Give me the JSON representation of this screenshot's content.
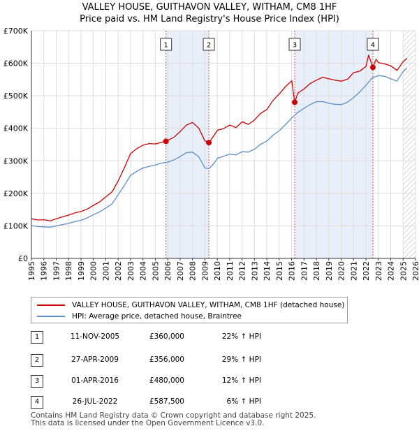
{
  "chart_data": {
    "type": "line",
    "title": "VALLEY HOUSE, GUITHAVON VALLEY, WITHAM, CM8 1HF",
    "subtitle": "Price paid vs. HM Land Registry's House Price Index (HPI)",
    "xlabel": "",
    "ylabel": "",
    "xlim": [
      1995,
      2026
    ],
    "ylim": [
      0,
      700000
    ],
    "x_ticks": [
      1995,
      1996,
      1997,
      1998,
      1999,
      2000,
      2001,
      2002,
      2003,
      2004,
      2005,
      2006,
      2007,
      2008,
      2009,
      2010,
      2011,
      2012,
      2013,
      2014,
      2015,
      2016,
      2017,
      2018,
      2019,
      2020,
      2021,
      2022,
      2023,
      2024,
      2025,
      2026
    ],
    "y_ticks": [
      {
        "value": 0,
        "label": "£0"
      },
      {
        "value": 100000,
        "label": "£100K"
      },
      {
        "value": 200000,
        "label": "£200K"
      },
      {
        "value": 300000,
        "label": "£300K"
      },
      {
        "value": 400000,
        "label": "£400K"
      },
      {
        "value": 500000,
        "label": "£500K"
      },
      {
        "value": 600000,
        "label": "£600K"
      },
      {
        "value": 700000,
        "label": "£700K"
      }
    ],
    "grid": true,
    "future_hatch_from": 2025.0,
    "series": [
      {
        "name": "VALLEY HOUSE, GUITHAVON VALLEY, WITHAM, CM8 1HF (detached house)",
        "color": "#cc0000",
        "x": [
          1995,
          1995.5,
          1996,
          1996.5,
          1997,
          1997.5,
          1998,
          1998.5,
          1999,
          1999.5,
          2000,
          2000.5,
          2001,
          2001.5,
          2002,
          2002.5,
          2003,
          2003.5,
          2004,
          2004.5,
          2005,
          2005.5,
          2005.86,
          2006.5,
          2007,
          2007.5,
          2008,
          2008.5,
          2009,
          2009.32,
          2009.7,
          2010,
          2010.5,
          2011,
          2011.5,
          2012,
          2012.5,
          2013,
          2013.5,
          2014,
          2014.5,
          2015,
          2015.5,
          2016,
          2016.25,
          2016.5,
          2017,
          2017.5,
          2018,
          2018.5,
          2019,
          2019.5,
          2020,
          2020.5,
          2021,
          2021.5,
          2022,
          2022.2,
          2022.56,
          2022.8,
          2023,
          2023.5,
          2024,
          2024.5,
          2025,
          2025.3
        ],
        "values": [
          122000,
          118000,
          119000,
          115000,
          122000,
          128000,
          133000,
          140000,
          144000,
          152000,
          163000,
          174000,
          189000,
          205000,
          238000,
          280000,
          322000,
          338000,
          348000,
          353000,
          352000,
          357000,
          360000,
          373000,
          390000,
          410000,
          418000,
          400000,
          361000,
          356000,
          376000,
          394000,
          399000,
          410000,
          402000,
          420000,
          412000,
          426000,
          446000,
          458000,
          486000,
          506000,
          528000,
          546000,
          480000,
          509000,
          521000,
          538000,
          548000,
          557000,
          552000,
          548000,
          545000,
          551000,
          571000,
          576000,
          590000,
          625000,
          587500,
          612000,
          602000,
          598000,
          592000,
          578000,
          605000,
          615000
        ]
      },
      {
        "name": "HPI: Average price, detached house, Braintree",
        "color": "#5b8fc9",
        "x": [
          1995,
          1995.5,
          1996,
          1996.5,
          1997,
          1997.5,
          1998,
          1998.5,
          1999,
          1999.5,
          2000,
          2000.5,
          2001,
          2001.5,
          2002,
          2002.5,
          2003,
          2003.5,
          2004,
          2004.5,
          2005,
          2005.5,
          2006,
          2006.5,
          2007,
          2007.5,
          2008,
          2008.5,
          2009,
          2009.3,
          2009.7,
          2010,
          2010.5,
          2011,
          2011.5,
          2012,
          2012.5,
          2013,
          2013.5,
          2014,
          2014.5,
          2015,
          2015.5,
          2016,
          2016.5,
          2017,
          2017.5,
          2018,
          2018.5,
          2019,
          2019.5,
          2020,
          2020.5,
          2021,
          2021.5,
          2022,
          2022.5,
          2023,
          2023.5,
          2024,
          2024.5,
          2025,
          2025.3
        ],
        "values": [
          101000,
          98000,
          97000,
          96000,
          100000,
          104000,
          108000,
          113000,
          117000,
          125000,
          134000,
          143000,
          155000,
          168000,
          196000,
          225000,
          255000,
          268000,
          278000,
          283000,
          287000,
          293000,
          296000,
          303000,
          313000,
          325000,
          327000,
          312000,
          278000,
          276000,
          290000,
          308000,
          314000,
          321000,
          318000,
          328000,
          327000,
          336000,
          351000,
          361000,
          379000,
          393000,
          411000,
          432000,
          449000,
          462000,
          473000,
          482000,
          482000,
          477000,
          474000,
          473000,
          480000,
          495000,
          512000,
          533000,
          555000,
          562000,
          560000,
          552000,
          545000,
          575000,
          585000
        ]
      }
    ],
    "sale_points": [
      {
        "label": "1",
        "x": 2005.86,
        "y": 360000
      },
      {
        "label": "2",
        "x": 2009.32,
        "y": 356000
      },
      {
        "label": "3",
        "x": 2016.25,
        "y": 480000
      },
      {
        "label": "4",
        "x": 2022.56,
        "y": 587500
      }
    ]
  },
  "legend": {
    "property_label": "VALLEY HOUSE, GUITHAVON VALLEY, WITHAM, CM8 1HF (detached house)",
    "hpi_label": "HPI: Average price, detached house, Braintree"
  },
  "sales": [
    {
      "num": "1",
      "date": "11-NOV-2005",
      "price": "£360,000",
      "hpi": "22% ↑ HPI"
    },
    {
      "num": "2",
      "date": "27-APR-2009",
      "price": "£356,000",
      "hpi": "29% ↑ HPI"
    },
    {
      "num": "3",
      "date": "01-APR-2016",
      "price": "£480,000",
      "hpi": "12% ↑ HPI"
    },
    {
      "num": "4",
      "date": "26-JUL-2022",
      "price": "£587,500",
      "hpi": "6% ↑ HPI"
    }
  ],
  "footer": {
    "line1": "Contains HM Land Registry data © Crown copyright and database right 2025.",
    "line2": "This data is licensed under the Open Government Licence v3.0."
  },
  "colors": {
    "property": "#cc0000",
    "hpi": "#5b8fc9",
    "shade": "#e8eefa",
    "grid": "#dddddd",
    "vline": "#dd4444"
  }
}
